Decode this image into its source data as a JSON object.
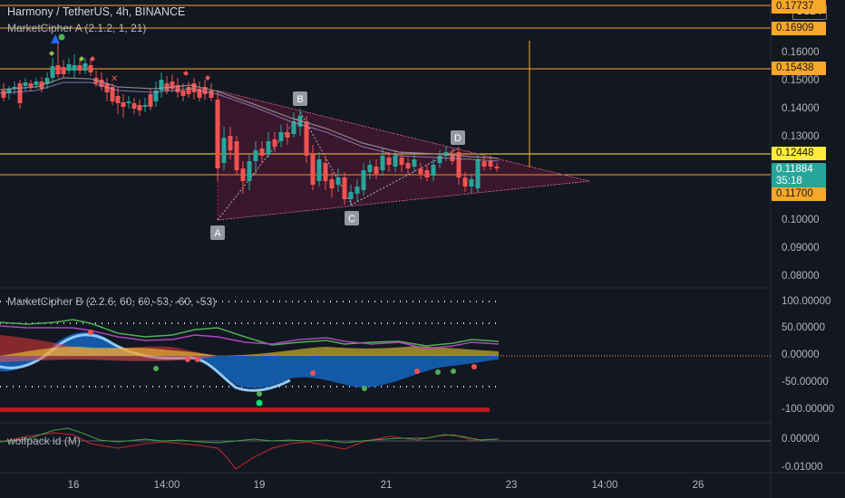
{
  "header": {
    "symbol_line": "Harmony / TetherUS, 4h, BINANCE",
    "indicator_a": "MarketCipher A (2.1.2, 1, 21)",
    "indicator_b": "MarketCipher B (2.2.6, 60, 60,-53, -60, -53)",
    "indicator_c": "wolfpack id (M)"
  },
  "currency_button": "USDT",
  "price_axis": [
    "0.16000",
    "0.15000",
    "0.14000",
    "0.13000",
    "0.10000",
    "0.09000",
    "0.08000"
  ],
  "price_labels": {
    "top": "0.17737",
    "l1": "0.16909",
    "l2": "0.15438",
    "l3": "0.12448",
    "last": "0.11884",
    "countdown": "35:18",
    "l4": "0.11700"
  },
  "osc_axis": [
    "100.00000",
    "50.00000",
    "0.00000",
    "-50.00000",
    "-100.00000"
  ],
  "wp_axis": [
    "0.00000",
    "-0.01000"
  ],
  "time_axis": [
    "16",
    "14:00",
    "19",
    "21",
    "23",
    "14:00",
    "26"
  ],
  "pattern_points": [
    "A",
    "B",
    "C",
    "D"
  ],
  "colors": {
    "background": "#131722",
    "bull": "#26a69a",
    "bear": "#ef5350",
    "level_line": "#f7a829",
    "triangle": "#e91e63"
  }
}
